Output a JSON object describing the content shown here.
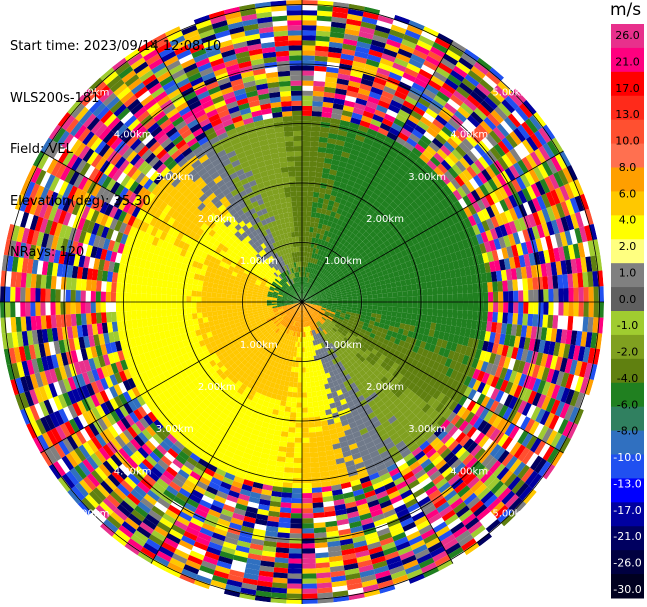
{
  "info": {
    "start_time": "Start time: 2023/09/14 12:08:10",
    "instrument": "WLS200s-181",
    "field": "Field: VEL",
    "elevation": "Elevation(deg): 35.30",
    "nrays": "NRays: 120"
  },
  "colorbar": {
    "unit": "m/s",
    "ticks": [
      "26.0",
      "21.0",
      "17.0",
      "13.0",
      "10.0",
      "8.0",
      "6.0",
      "4.0",
      "2.0",
      "1.0",
      "0.0",
      "-1.0",
      "-2.0",
      "-4.0",
      "-6.0",
      "-8.0",
      "-10.0",
      "-13.0",
      "-17.0",
      "-21.0",
      "-26.0",
      "-30.0"
    ],
    "colors": [
      "#e8308c",
      "#ff007f",
      "#ff0000",
      "#ff2a1a",
      "#ff5030",
      "#ff7050",
      "#ff9f00",
      "#ffc800",
      "#ffff00",
      "#ffff80",
      "#808080",
      "#606060",
      "#a0cc30",
      "#80a020",
      "#608010",
      "#208020",
      "#308060",
      "#3070c0",
      "#2050f0",
      "#0000ff",
      "#0000a0",
      "#000060",
      "#000040",
      "#000020"
    ]
  },
  "ring_labels": [
    "1.00km",
    "2.00km",
    "3.00km",
    "4.00km",
    "5.00km"
  ]
}
